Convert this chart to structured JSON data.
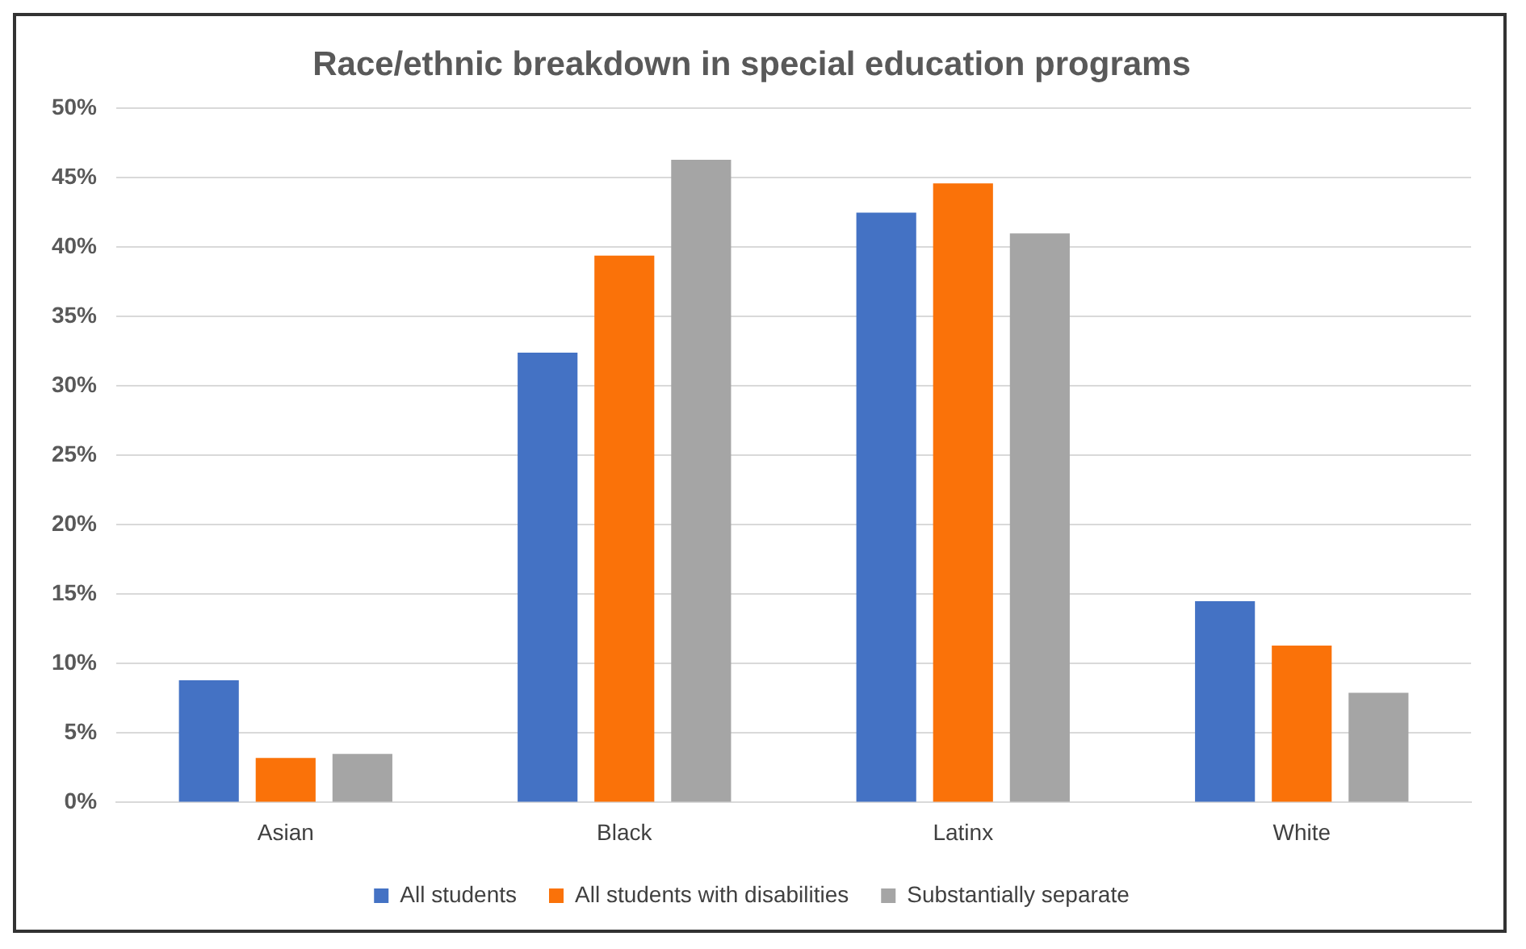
{
  "chart_data": {
    "type": "bar",
    "title": "Race/ethnic breakdown in special education programs",
    "categories": [
      "Asian",
      "Black",
      "Latinx",
      "White"
    ],
    "series": [
      {
        "name": "All students",
        "color": "#4472c4",
        "values": [
          8.8,
          32.4,
          42.5,
          14.5
        ]
      },
      {
        "name": "All students with disabilities",
        "color": "#fa7209",
        "values": [
          3.2,
          39.4,
          44.6,
          11.3
        ]
      },
      {
        "name": "Substantially separate",
        "color": "#a5a5a5",
        "values": [
          3.5,
          46.3,
          41.0,
          7.9
        ]
      }
    ],
    "ylim": [
      0,
      50
    ],
    "yticks": [
      {
        "value": 0,
        "label": "0%"
      },
      {
        "value": 5,
        "label": "5%"
      },
      {
        "value": 10,
        "label": "10%"
      },
      {
        "value": 15,
        "label": "15%"
      },
      {
        "value": 20,
        "label": "20%"
      },
      {
        "value": 25,
        "label": "25%"
      },
      {
        "value": 30,
        "label": "30%"
      },
      {
        "value": 35,
        "label": "35%"
      },
      {
        "value": 40,
        "label": "40%"
      },
      {
        "value": 45,
        "label": "45%"
      },
      {
        "value": 50,
        "label": "50%"
      }
    ],
    "grid": "y",
    "legend": "bottom"
  }
}
